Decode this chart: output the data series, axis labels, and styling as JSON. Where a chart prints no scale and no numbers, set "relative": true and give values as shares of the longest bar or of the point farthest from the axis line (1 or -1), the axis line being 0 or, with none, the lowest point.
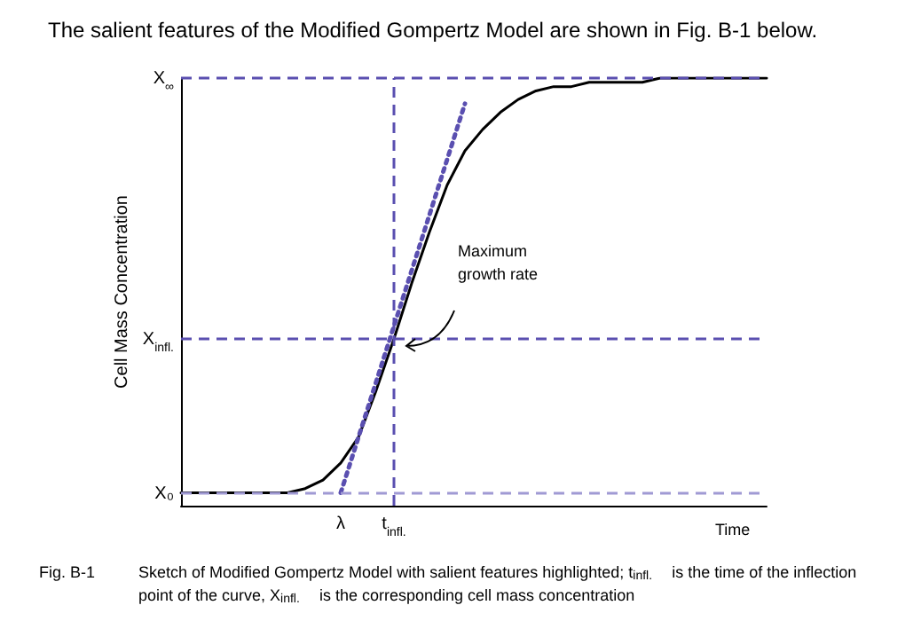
{
  "chart_data": {
    "type": "line",
    "relative": true,
    "title": "The salient features of the Modified Gompertz Model are shown in Fig. B-1 below.",
    "xlabel": "Time",
    "ylabel": "Cell Mass Concentration",
    "categories": [
      null,
      null,
      null,
      null,
      null,
      null,
      null,
      null,
      null,
      "λ",
      null,
      null,
      "t$_{infl.}$",
      null,
      null,
      null,
      null,
      null,
      null,
      null,
      null,
      null,
      null,
      null,
      null,
      null,
      null,
      null,
      null,
      null,
      null,
      null,
      null,
      null
    ],
    "series": [
      {
        "color": "#000000",
        "line_style": "solid",
        "values": [
          0.03,
          0.03,
          0.03,
          0.03,
          0.03,
          0.03,
          0.03,
          0.04,
          0.06,
          0.1,
          0.16,
          0.27,
          0.39,
          0.52,
          0.64,
          0.75,
          0.83,
          0.88,
          0.92,
          0.95,
          0.97,
          0.98,
          0.98,
          0.99,
          0.99,
          0.99,
          0.99,
          1,
          1,
          1,
          1,
          1,
          1,
          1
        ]
      },
      {
        "color": "#5a4fb0",
        "line_style": "dotted",
        "values": [
          null,
          null,
          null,
          null,
          null,
          null,
          null,
          null,
          null,
          0.03,
          null,
          null,
          null,
          null,
          null,
          null,
          0.94,
          null,
          null,
          null,
          null,
          null,
          null,
          null,
          null,
          null,
          null,
          null,
          null,
          null,
          null,
          null,
          null,
          null
        ]
      }
    ],
    "ref_lines": [
      {
        "axis": "y",
        "value": 1,
        "label": "X$_{∞}$",
        "color": "#5a4fb0",
        "line_style": "dashed"
      },
      {
        "axis": "y",
        "value": 0.39,
        "label": "X$_{infl.}$",
        "color": "#5a4fb0",
        "line_style": "dashed"
      },
      {
        "axis": "y",
        "value": 0.03,
        "label": "X₀",
        "color": "#a09ad4",
        "line_style": "dashed"
      },
      {
        "axis": "x",
        "value": "t$_{infl.}$",
        "color": "#5a4fb0",
        "line_style": "dashed"
      }
    ],
    "annotations": [
      "Maximum growth rate",
      "Fig. B-1",
      "Sketch of Modified Gompertz Model with salient features highlighted; t$_{infl.}$ is the time of the inflection point of the curve, X$_{infl.}$ is the corresponding cell mass concentration"
    ],
    "grid": false,
    "marker": "none"
  }
}
